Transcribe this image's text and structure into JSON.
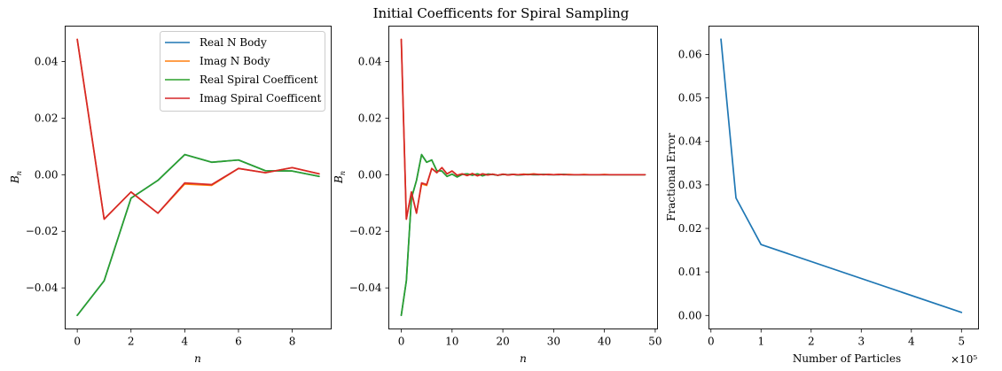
{
  "figure": {
    "title": "Initial Coefficents for Spiral Sampling"
  },
  "chart_data": [
    {
      "type": "line",
      "xlabel": "n",
      "ylabel": "B_n",
      "xlim": [
        -0.45,
        9.45
      ],
      "ylim": [
        -0.0545,
        0.0525
      ],
      "xticks": [
        0,
        2,
        4,
        6,
        8
      ],
      "yticks": [
        -0.04,
        -0.02,
        0.0,
        0.02,
        0.04
      ],
      "ytick_labels": [
        "−0.04",
        "−0.02",
        "0.00",
        "0.02",
        "0.04"
      ],
      "legend": "top-right",
      "x": [
        0,
        1,
        2,
        3,
        4,
        5,
        6,
        7,
        8,
        9
      ],
      "series": [
        {
          "name": "Real N Body",
          "color": "#1f77b4",
          "values": [
            -0.0497,
            -0.0375,
            -0.0083,
            -0.002,
            0.0071,
            0.0044,
            0.0052,
            0.0014,
            0.0013,
            -0.0006
          ]
        },
        {
          "name": "Imag N Body",
          "color": "#ff7f0e",
          "values": [
            0.0478,
            -0.0157,
            -0.0061,
            -0.0136,
            -0.0033,
            -0.0038,
            0.0022,
            0.0007,
            0.0025,
            0.0003
          ]
        },
        {
          "name": "Real Spiral Coefficent",
          "color": "#2ca02c",
          "values": [
            -0.0497,
            -0.0375,
            -0.0083,
            -0.002,
            0.0071,
            0.0044,
            0.0052,
            0.0014,
            0.0013,
            -0.0006
          ]
        },
        {
          "name": "Imag Spiral Coefficent",
          "color": "#d62728",
          "values": [
            0.0478,
            -0.0157,
            -0.0061,
            -0.0136,
            -0.0029,
            -0.0035,
            0.0022,
            0.0007,
            0.0025,
            0.0003
          ]
        }
      ]
    },
    {
      "type": "line",
      "xlabel": "n",
      "ylabel": "B_n",
      "xlim": [
        -2.45,
        50.45
      ],
      "ylim": [
        -0.0545,
        0.0525
      ],
      "xticks": [
        0,
        10,
        20,
        30,
        40,
        50
      ],
      "yticks": [
        -0.04,
        -0.02,
        0.0,
        0.02,
        0.04
      ],
      "ytick_labels": [
        "−0.04",
        "−0.02",
        "0.00",
        "0.02",
        "0.04"
      ],
      "x": [
        0,
        1,
        2,
        3,
        4,
        5,
        6,
        7,
        8,
        9,
        10,
        11,
        12,
        13,
        14,
        15,
        16,
        17,
        18,
        19,
        20,
        21,
        22,
        23,
        24,
        25,
        26,
        27,
        28,
        29,
        30,
        31,
        32,
        33,
        34,
        35,
        36,
        37,
        38,
        39,
        40,
        41,
        42,
        43,
        44,
        45,
        46,
        47,
        48
      ],
      "series": [
        {
          "name": "Real N Body",
          "color": "#1f77b4",
          "values": [
            -0.0497,
            -0.0375,
            -0.0083,
            -0.002,
            0.0071,
            0.0044,
            0.0052,
            0.0014,
            0.0013,
            -0.0006,
            0.0002,
            -0.0008,
            0.0001,
            0.0003,
            -0.0002,
            0.0003,
            -0.0004,
            0.0002,
            0.0001,
            -0.0002,
            0.0001,
            0.0,
            0.0001,
            -0.0001,
            0.0,
            0.0001,
            0.0,
            0.0,
            0.0001,
            0.0,
            0.0,
            0.0,
            0.0001,
            0.0,
            0.0,
            0.0,
            0.0,
            0.0,
            0.0,
            0.0,
            0.0,
            0.0,
            0.0,
            0.0,
            0.0,
            0.0,
            0.0,
            0.0,
            0.0
          ]
        },
        {
          "name": "Imag N Body",
          "color": "#ff7f0e",
          "values": [
            0.0478,
            -0.0157,
            -0.0061,
            -0.0136,
            -0.0033,
            -0.0038,
            0.0022,
            0.0007,
            0.0025,
            0.0003,
            0.0013,
            -0.0002,
            0.0003,
            -0.0003,
            0.0004,
            -0.0004,
            0.0003,
            -0.0001,
            0.0002,
            -0.0002,
            0.0002,
            -0.0001,
            0.0001,
            0.0,
            0.0002,
            0.0001,
            0.0003,
            0.0001,
            0.0,
            0.0001,
            0.0,
            0.0001,
            0.0,
            0.0001,
            0.0,
            0.0,
            0.0001,
            0.0,
            0.0,
            0.0,
            0.0001,
            0.0,
            0.0,
            0.0,
            0.0,
            0.0,
            0.0,
            0.0,
            0.0
          ]
        },
        {
          "name": "Real Spiral Coefficent",
          "color": "#2ca02c",
          "values": [
            -0.0497,
            -0.0375,
            -0.0083,
            -0.002,
            0.0071,
            0.0044,
            0.0052,
            0.0014,
            0.0013,
            -0.0006,
            0.0002,
            -0.0008,
            0.0001,
            0.0003,
            -0.0002,
            0.0003,
            -0.0004,
            0.0002,
            0.0001,
            -0.0002,
            0.0001,
            0.0,
            0.0001,
            -0.0001,
            0.0,
            0.0001,
            0.0,
            0.0,
            0.0001,
            0.0,
            0.0,
            0.0,
            0.0001,
            0.0,
            0.0,
            0.0,
            0.0,
            0.0,
            0.0,
            0.0,
            0.0,
            0.0,
            0.0,
            0.0,
            0.0,
            0.0,
            0.0,
            0.0,
            0.0
          ]
        },
        {
          "name": "Imag Spiral Coefficent",
          "color": "#d62728",
          "values": [
            0.0478,
            -0.0157,
            -0.0061,
            -0.0136,
            -0.0029,
            -0.0035,
            0.0022,
            0.0007,
            0.0025,
            0.0003,
            0.0013,
            -0.0002,
            0.0003,
            -0.0003,
            0.0004,
            -0.0004,
            0.0003,
            -0.0001,
            0.0002,
            -0.0002,
            0.0002,
            -0.0001,
            0.0001,
            0.0,
            0.0001,
            0.0,
            0.0002,
            0.0001,
            0.0,
            0.0001,
            0.0,
            0.0001,
            0.0,
            0.0,
            0.0,
            0.0,
            0.0,
            0.0,
            0.0,
            0.0,
            0.0,
            0.0,
            0.0,
            0.0,
            0.0,
            0.0,
            0.0,
            0.0,
            0.0
          ]
        }
      ]
    },
    {
      "type": "line",
      "xlabel": "Number of Particles",
      "ylabel": "Fractional Error",
      "x_multiplier_label": "×10⁵",
      "xlim": [
        -0.04,
        5.34
      ],
      "ylim": [
        -0.0031,
        0.0665
      ],
      "xticks": [
        0,
        1,
        2,
        3,
        4,
        5
      ],
      "yticks": [
        0.0,
        0.01,
        0.02,
        0.03,
        0.04,
        0.05,
        0.06
      ],
      "ytick_labels": [
        "0.00",
        "0.01",
        "0.02",
        "0.03",
        "0.04",
        "0.05",
        "0.06"
      ],
      "x": [
        0.2,
        0.5,
        1.0,
        5.0
      ],
      "series": [
        {
          "color": "#1f77b4",
          "values": [
            0.0635,
            0.027,
            0.0163,
            0.0007
          ]
        }
      ]
    }
  ]
}
